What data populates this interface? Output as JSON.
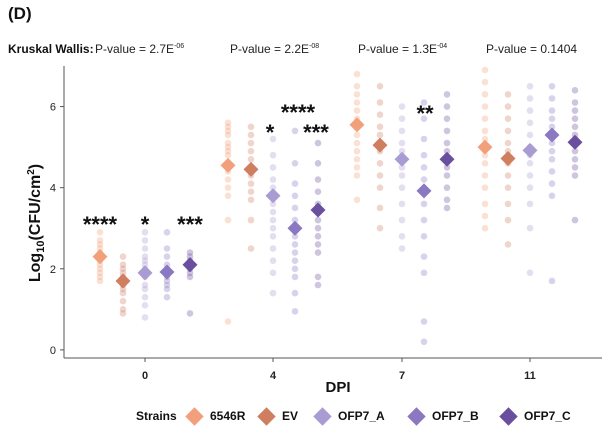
{
  "panel_label": "(D)",
  "stats": {
    "test_label": "Kruskal Wallis:",
    "pvalues": [
      {
        "prefix": "P-value = 2.7E",
        "exp": "-06"
      },
      {
        "prefix": "P-value = 2.2E",
        "exp": "-08"
      },
      {
        "prefix": "P-value = 1.3E",
        "exp": "-04"
      },
      {
        "prefix": "P-value = 0.1404",
        "exp": ""
      }
    ]
  },
  "legend": {
    "title": "Strains",
    "items": [
      "6546R",
      "EV",
      "OFP7_A",
      "OFP7_B",
      "OFP7_C"
    ]
  },
  "colors": {
    "6546R": "#f2a07b",
    "EV": "#cf7e60",
    "OFP7_A": "#a99cd2",
    "OFP7_B": "#8a78c2",
    "OFP7_C": "#6a4f9e",
    "axis": "#555555"
  },
  "chart_data": {
    "type": "scatter",
    "xlabel": "DPI",
    "ylabel_main": "Log",
    "ylabel_sub": "10",
    "ylabel_rest": "(CFU/cm",
    "ylabel_sup": "2",
    "ylabel_end": ")",
    "ylim": [
      -0.2,
      7.0
    ],
    "yticks": [
      0,
      2,
      4,
      6
    ],
    "categories": [
      "0",
      "4",
      "7",
      "11"
    ],
    "strains": [
      "6546R",
      "EV",
      "OFP7_A",
      "OFP7_B",
      "OFP7_C"
    ],
    "means": {
      "0": [
        2.3,
        1.7,
        1.9,
        1.92,
        2.1
      ],
      "4": [
        4.55,
        4.45,
        3.8,
        3.0,
        3.45
      ],
      "7": [
        5.55,
        5.05,
        4.7,
        3.92,
        4.7
      ],
      "11": [
        5.0,
        4.72,
        4.92,
        5.3,
        5.12
      ]
    },
    "points": {
      "0": [
        [
          2.9,
          2.7,
          2.6,
          2.5,
          2.4,
          2.3,
          2.2,
          2.1,
          2.0,
          1.9,
          1.8,
          1.7
        ],
        [
          2.3,
          2.1,
          2.0,
          1.9,
          1.8,
          1.7,
          1.6,
          1.5,
          1.4,
          1.2,
          1.0,
          0.9
        ],
        [
          2.9,
          2.7,
          2.5,
          2.3,
          2.2,
          2.1,
          2.0,
          1.9,
          1.8,
          1.6,
          1.5,
          1.3,
          1.1,
          0.8
        ],
        [
          2.9,
          2.5,
          2.3,
          2.1,
          2.0,
          1.9,
          1.8,
          1.7,
          1.6,
          1.5,
          1.3
        ],
        [
          2.4,
          2.3,
          2.2,
          2.1,
          2.0,
          1.9,
          1.8,
          0.9
        ]
      ],
      "4": [
        [
          5.6,
          5.5,
          5.4,
          5.3,
          5.1,
          5.0,
          4.9,
          4.8,
          4.6,
          4.5,
          4.4,
          4.2,
          4.0,
          3.8,
          3.2,
          0.7
        ],
        [
          5.5,
          5.3,
          5.1,
          4.9,
          4.7,
          4.5,
          4.3,
          4.1,
          3.9,
          3.7,
          3.2,
          2.5
        ],
        [
          5.2,
          4.8,
          4.5,
          4.2,
          4.0,
          3.8,
          3.6,
          3.4,
          3.2,
          3.0,
          2.8,
          2.5,
          2.2,
          1.9,
          1.4
        ],
        [
          5.4,
          4.6,
          4.1,
          3.8,
          3.5,
          3.2,
          3.0,
          2.8,
          2.6,
          2.4,
          2.2,
          2.0,
          1.8,
          1.4,
          0.95
        ],
        [
          5.1,
          4.6,
          4.2,
          3.9,
          3.6,
          3.4,
          3.2,
          3.0,
          2.8,
          2.6,
          2.4,
          1.8,
          1.6
        ]
      ],
      "7": [
        [
          6.8,
          6.5,
          6.3,
          6.1,
          5.9,
          5.7,
          5.5,
          5.3,
          5.1,
          4.9,
          4.7,
          4.5,
          4.3,
          3.7
        ],
        [
          6.5,
          6.1,
          5.8,
          5.5,
          5.3,
          5.1,
          4.9,
          4.6,
          4.3,
          4.0,
          3.5,
          3.0
        ],
        [
          6.0,
          5.7,
          5.4,
          5.1,
          4.9,
          4.7,
          4.5,
          4.3,
          4.0,
          3.6,
          3.2,
          2.8,
          2.5
        ],
        [
          6.1,
          5.7,
          5.2,
          4.8,
          4.5,
          4.2,
          3.9,
          3.6,
          3.2,
          2.8,
          2.3,
          1.9,
          0.7,
          0.2
        ],
        [
          6.3,
          6.0,
          5.7,
          5.4,
          5.1,
          4.9,
          4.7,
          4.5,
          4.3,
          4.0,
          3.7,
          3.5
        ]
      ],
      "11": [
        [
          6.9,
          6.6,
          6.3,
          6.0,
          5.7,
          5.4,
          5.2,
          5.0,
          4.8,
          4.6,
          4.3,
          4.0,
          3.6,
          3.3,
          3.0
        ],
        [
          6.3,
          6.0,
          5.7,
          5.4,
          5.1,
          4.9,
          4.6,
          4.3,
          4.0,
          3.6,
          3.2,
          2.6
        ],
        [
          6.5,
          6.2,
          5.9,
          5.6,
          5.3,
          5.0,
          4.8,
          4.6,
          4.3,
          4.0,
          3.6,
          3.0,
          1.9
        ],
        [
          6.5,
          6.2,
          5.9,
          5.7,
          5.5,
          5.3,
          5.1,
          4.9,
          4.7,
          4.4,
          4.1,
          3.8,
          1.7
        ],
        [
          6.4,
          6.1,
          5.9,
          5.7,
          5.5,
          5.3,
          5.1,
          4.9,
          4.7,
          4.5,
          4.3,
          3.2
        ]
      ]
    },
    "significance": [
      {
        "text": "****",
        "category": "0",
        "strain": "6546R"
      },
      {
        "text": "*",
        "category": "0",
        "strain": "OFP7_A"
      },
      {
        "text": "***",
        "category": "0",
        "strain": "OFP7_C"
      },
      {
        "text": "****",
        "category": "4",
        "strain": "OFP7_A"
      },
      {
        "text": "*",
        "category": "4",
        "strain": "OFP7_A"
      },
      {
        "text": "***",
        "category": "4",
        "strain": "OFP7_C"
      },
      {
        "text": "**",
        "category": "7",
        "strain": "OFP7_B"
      }
    ]
  }
}
